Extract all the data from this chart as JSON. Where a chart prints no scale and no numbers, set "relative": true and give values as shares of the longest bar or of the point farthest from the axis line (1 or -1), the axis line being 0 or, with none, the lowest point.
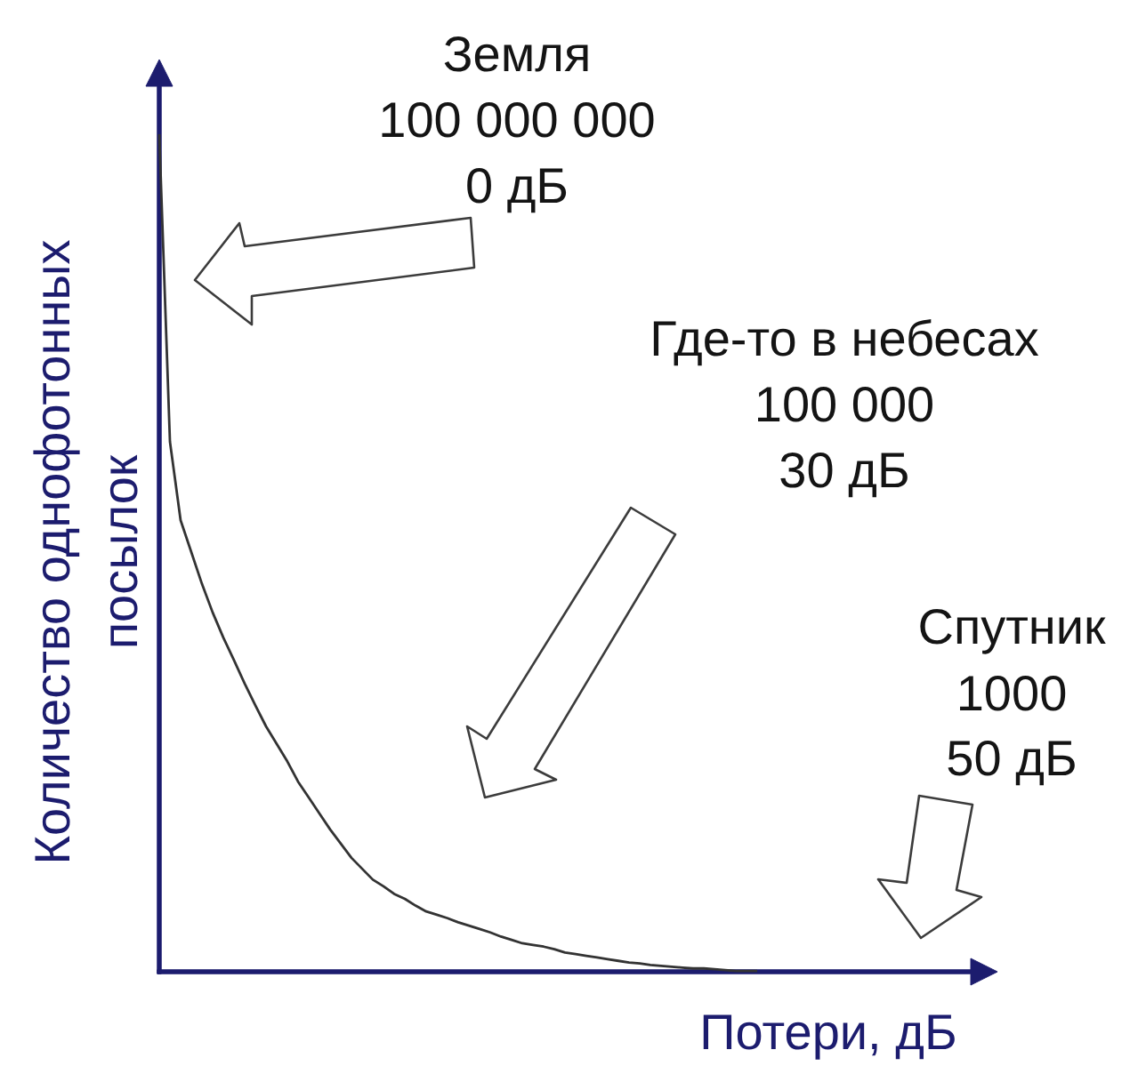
{
  "chart_data": {
    "type": "line",
    "relative": true,
    "xlabel": "Потери, дБ",
    "ylabel": "Количество однофотонных посылок",
    "annotations": [
      "Земля\n100 000 000\n0 дБ",
      "Где-то в небесах\n100 000\n30 дБ",
      "Спутник\n1000\n50 дБ"
    ],
    "color": "#333333",
    "categories": [
      null,
      null,
      null,
      null,
      null,
      null,
      null,
      null,
      null,
      null,
      null,
      null,
      null,
      null,
      null,
      null,
      null,
      null,
      null,
      null,
      null,
      null,
      null,
      null,
      null,
      null,
      null,
      null,
      null,
      null,
      null,
      null,
      null,
      null,
      null,
      null,
      null,
      null,
      null,
      null,
      null,
      null,
      null,
      null,
      null,
      null,
      null,
      null,
      null,
      null,
      null,
      null,
      null,
      null,
      null,
      null,
      null
    ],
    "values": [
      1.0,
      0.633,
      0.539,
      0.501,
      0.463,
      0.429,
      0.399,
      0.372,
      0.344,
      0.318,
      0.293,
      0.272,
      0.251,
      0.227,
      0.208,
      0.189,
      0.17,
      0.153,
      0.136,
      0.123,
      0.11,
      0.102,
      0.093,
      0.087,
      0.079,
      0.072,
      0.068,
      0.064,
      0.059,
      0.055,
      0.051,
      0.047,
      0.042,
      0.038,
      0.034,
      0.032,
      0.03,
      0.027,
      0.023,
      0.021,
      0.019,
      0.017,
      0.015,
      0.013,
      0.011,
      0.01,
      0.008,
      0.007,
      0.006,
      0.005,
      0.004,
      0.004,
      0.003,
      0.002,
      0.001,
      0.001,
      0.001
    ]
  }
}
